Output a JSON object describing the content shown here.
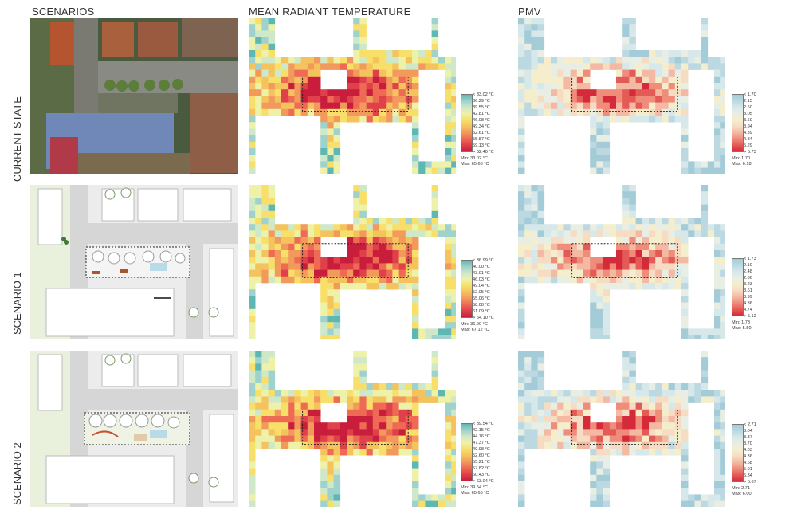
{
  "columns": [
    "SCENARIOS",
    "MEAN RADIANT TEMPERATURE",
    "PMV"
  ],
  "rows": [
    {
      "label": "CURRENT STATE",
      "mrt_legend": {
        "ticks": [
          "< 33.02 °C",
          "36.29 °C",
          "39.55 °C",
          "42.81 °C",
          "46.08 °C",
          "49.34 °C",
          "52.61 °C",
          "55.87 °C",
          "59.13 °C",
          "> 62.40 °C"
        ],
        "min": "Min: 33.02 °C",
        "max": "Max: 65.66 °C"
      },
      "pmv_legend": {
        "ticks": [
          "< 1.70",
          "2.15",
          "2.60",
          "3.05",
          "3.50",
          "3.94",
          "4.39",
          "4.84",
          "5.29",
          "> 5.73"
        ],
        "min": "Min: 1.70",
        "max": "Max: 6.18"
      }
    },
    {
      "label": "SCENARIO 1",
      "mrt_legend": {
        "ticks": [
          "< 36.99 °C",
          "40.00 °C",
          "43.01 °C",
          "46.03 °C",
          "49.04 °C",
          "52.05 °C",
          "55.06 °C",
          "58.08 °C",
          "61.09 °C",
          "> 64.10 °C"
        ],
        "min": "Min: 36.99 °C",
        "max": "Max: 67.12 °C"
      },
      "pmv_legend": {
        "ticks": [
          "< 1.73",
          "2.10",
          "2.48",
          "2.86",
          "3.23",
          "3.61",
          "3.99",
          "4.36",
          "4.74",
          "> 5.12"
        ],
        "min": "Min: 1.73",
        "max": "Max: 5.50"
      }
    },
    {
      "label": "SCENARIO 2",
      "mrt_legend": {
        "ticks": [
          "< 39.54 °C",
          "42.15 °C",
          "44.76 °C",
          "47.37 °C",
          "49.98 °C",
          "52.60 °C",
          "55.21 °C",
          "57.82 °C",
          "60.43 °C",
          "> 63.04 °C"
        ],
        "min": "Min: 39.54 °C",
        "max": "Max: 65.65 °C"
      },
      "pmv_legend": {
        "ticks": [
          "< 2.71",
          "3.04",
          "3.37",
          "3.70",
          "4.03",
          "4.36",
          "4.68",
          "5.01",
          "5.34",
          "> 5.67"
        ],
        "min": "Min: 2.71",
        "max": "Max: 6.00"
      }
    }
  ],
  "colors": {
    "mrt_scale": [
      "#c81e3c",
      "#e0404a",
      "#ef6a55",
      "#f29a5c",
      "#f5c35e",
      "#f7df6a",
      "#eef2a8",
      "#cfe8c8",
      "#9fd2cc",
      "#5fb7b4"
    ],
    "pmv_scale": [
      "#d42a3a",
      "#e45a56",
      "#ef8c7a",
      "#f4b9a2",
      "#f7dcc4",
      "#f4eecd",
      "#e9eee4",
      "#d6e8ea",
      "#bcd9e2",
      "#a4ccd8"
    ],
    "plan_background": "#ececec",
    "building": "#ffffff",
    "grass": "#e9f0dc",
    "road": "#d6d6d6"
  }
}
